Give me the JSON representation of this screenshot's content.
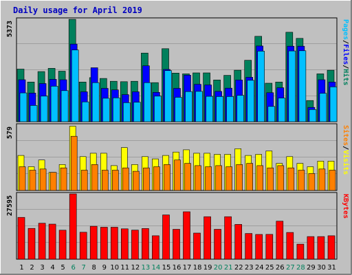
{
  "chart_data": {
    "type": "bar",
    "title": "Daily usage for April 2019",
    "categories": [
      "1",
      "2",
      "3",
      "4",
      "5",
      "6",
      "7",
      "8",
      "9",
      "10",
      "11",
      "12",
      "13",
      "14",
      "15",
      "16",
      "17",
      "18",
      "19",
      "20",
      "21",
      "22",
      "23",
      "24",
      "25",
      "26",
      "27",
      "28",
      "29",
      "30",
      "31"
    ],
    "weekend_days": [
      6,
      7,
      13,
      14,
      20,
      21,
      27,
      28
    ],
    "colors": {
      "background": "#c0c0c0",
      "title": "#0000c0",
      "hits": "#00805c",
      "files": "#0000ff",
      "pages": "#00c0ff",
      "visits": "#ffff00",
      "sites": "#ff8000",
      "kbytes": "#ff0000",
      "weekday_label": "#000000",
      "weekend_label": "#00805c",
      "frame": "#000000"
    },
    "panels": [
      {
        "id": "top",
        "max_label": "5373",
        "ymax": 5373,
        "labels": [
          {
            "text": "Pages",
            "color": "#00c0ff"
          },
          {
            "text": "/",
            "color": "#000000"
          },
          {
            "text": "Files",
            "color": "#0000ff"
          },
          {
            "text": "/",
            "color": "#000000"
          },
          {
            "text": "Hits",
            "color": "#00805c"
          }
        ],
        "series": [
          {
            "name": "Hits",
            "color": "#00805c",
            "values": [
              2760,
              2080,
              2630,
              2800,
              2650,
              5370,
              2080,
              2310,
              2270,
              2120,
              2100,
              2120,
              3600,
              2050,
              3830,
              2550,
              2510,
              2560,
              2560,
              2190,
              2430,
              2700,
              3220,
              4480,
              2020,
              2080,
              4690,
              4370,
              1110,
              2510,
              2700
            ]
          },
          {
            "name": "Files",
            "color": "#0000ff",
            "values": [
              2200,
              1500,
              2000,
              2220,
              2200,
              4070,
              1570,
              2830,
              1750,
              1670,
              1420,
              1570,
              2930,
              1540,
              2740,
              1750,
              2440,
              1960,
              1930,
              1590,
              1760,
              2190,
              2330,
              3970,
              1520,
              1780,
              3960,
              3960,
              750,
              2200,
              2080
            ]
          },
          {
            "name": "Pages",
            "color": "#00c0ff",
            "values": [
              1510,
              850,
              1340,
              1860,
              1630,
              3760,
              1040,
              2050,
              1230,
              1250,
              1000,
              1020,
              2050,
              1340,
              2680,
              1280,
              1580,
              1590,
              1330,
              1320,
              1320,
              1380,
              2170,
              3700,
              800,
              1240,
              3710,
              3720,
              640,
              1490,
              1830
            ]
          }
        ]
      },
      {
        "id": "middle",
        "max_label": "579",
        "ymax": 579,
        "labels": [
          {
            "text": "Sites",
            "color": "#ff8000"
          },
          {
            "text": "/",
            "color": "#000000"
          },
          {
            "text": "Visits",
            "color": "#ffff00"
          }
        ],
        "series": [
          {
            "name": "Visits",
            "color": "#ffff00",
            "values": [
              310,
              210,
              270,
              160,
              230,
              570,
              300,
              330,
              330,
              220,
              380,
              230,
              300,
              280,
              310,
              340,
              360,
              330,
              330,
              320,
              320,
              370,
              310,
              320,
              350,
              240,
              300,
              240,
              210,
              260,
              260
            ]
          },
          {
            "name": "Sites",
            "color": "#ff8000",
            "values": [
              210,
              180,
              190,
              160,
              200,
              480,
              180,
              230,
              180,
              180,
              200,
              170,
              200,
              210,
              230,
              270,
              240,
              220,
              210,
              220,
              210,
              230,
              240,
              220,
              200,
              220,
              200,
              180,
              150,
              190,
              180
            ]
          }
        ]
      },
      {
        "id": "bottom",
        "max_label": "27595",
        "ymax": 27595,
        "labels": [
          {
            "text": "KBytes",
            "color": "#ff0000"
          }
        ],
        "series": [
          {
            "name": "KBytes",
            "color": "#ff0000",
            "values": [
              17650,
              13000,
              15200,
              14800,
              12250,
              27600,
              11400,
              13900,
              13500,
              13500,
              12850,
              12300,
              12950,
              9900,
              18700,
              12650,
              20050,
              11050,
              17950,
              12650,
              17950,
              14700,
              10850,
              10450,
              10500,
              16050,
              11300,
              6350,
              9550,
              9550,
              9900
            ]
          }
        ]
      }
    ]
  }
}
